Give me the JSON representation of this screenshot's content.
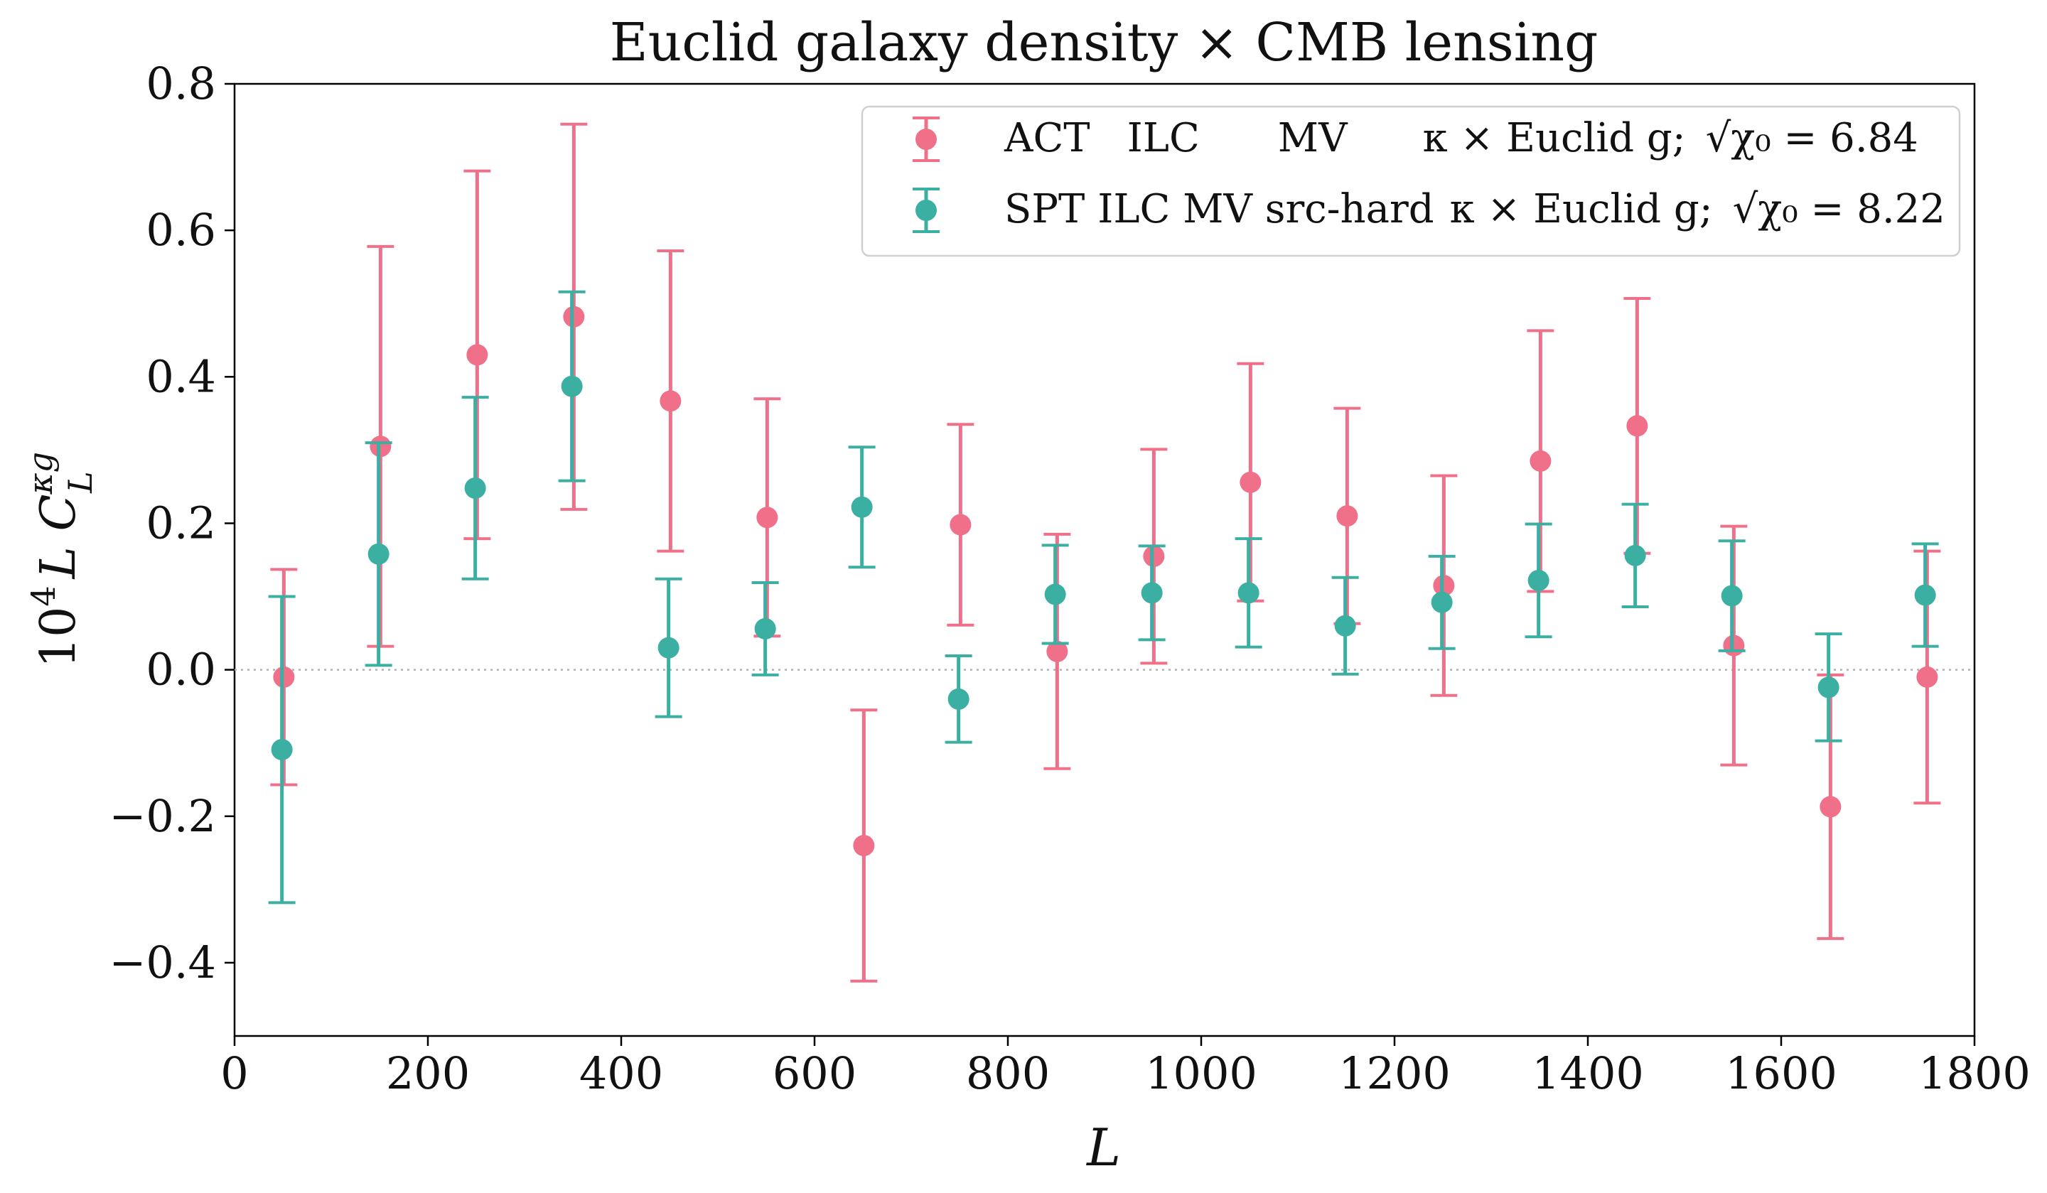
{
  "chart_data": {
    "type": "scatter",
    "title": "Euclid galaxy density × CMB lensing",
    "xlabel": "L",
    "ylabel": {
      "prefix": "10",
      "exp": "4",
      "mid": "L C",
      "sup": "κg",
      "sub": "L"
    },
    "xlim": [
      0,
      1800
    ],
    "ylim": [
      -0.5,
      0.8
    ],
    "xticks": [
      0,
      200,
      400,
      600,
      800,
      1000,
      1200,
      1400,
      1600,
      1800
    ],
    "yticks": [
      -0.4,
      -0.2,
      0.0,
      0.2,
      0.4,
      0.6,
      0.8
    ],
    "xtick_labels": [
      "0",
      "200",
      "400",
      "600",
      "800",
      "1000",
      "1200",
      "1400",
      "1600",
      "1800"
    ],
    "ytick_labels": [
      "−0.4",
      "−0.2",
      "0.0",
      "0.2",
      "0.4",
      "0.6",
      "0.8"
    ],
    "reference_line": {
      "y": 0.0,
      "style": "dotted",
      "color": "#b0b0b0"
    },
    "grid": false,
    "legend_position": "top-right",
    "series": [
      {
        "name": "ACT ILC MV κ × Euclid g",
        "legend_parts": [
          "ACT",
          "ILC",
          "MV",
          "κ × Euclid g;"
        ],
        "stat_label": "√χ₀ = 6.84",
        "color": "#f07089",
        "x": [
          51,
          151,
          251,
          351,
          451,
          551,
          651,
          751,
          851,
          951,
          1051,
          1151,
          1251,
          1351,
          1451,
          1551,
          1651,
          1751
        ],
        "y": [
          -0.01,
          0.305,
          0.43,
          0.482,
          0.367,
          0.208,
          -0.24,
          0.198,
          0.025,
          0.155,
          0.256,
          0.21,
          0.115,
          0.285,
          0.333,
          0.033,
          -0.187,
          -0.01
        ],
        "err": [
          0.147,
          0.273,
          0.251,
          0.263,
          0.205,
          0.162,
          0.185,
          0.137,
          0.16,
          0.146,
          0.162,
          0.147,
          0.15,
          0.178,
          0.174,
          0.163,
          0.18,
          0.172
        ]
      },
      {
        "name": "SPT ILC MV src-hard κ × Euclid g",
        "legend_parts": [
          "SPT ILC MV src-hard",
          "κ × Euclid g;"
        ],
        "stat_label": "√χ₀ = 8.22",
        "color": "#3bb0a2",
        "x": [
          49,
          149,
          249,
          349,
          449,
          549,
          649,
          749,
          849,
          949,
          1049,
          1149,
          1249,
          1349,
          1449,
          1549,
          1649,
          1749
        ],
        "y": [
          -0.109,
          0.158,
          0.248,
          0.387,
          0.03,
          0.056,
          0.222,
          -0.04,
          0.103,
          0.105,
          0.105,
          0.06,
          0.092,
          0.122,
          0.156,
          0.101,
          -0.024,
          0.102
        ],
        "err": [
          0.209,
          0.152,
          0.124,
          0.129,
          0.094,
          0.063,
          0.082,
          0.059,
          0.067,
          0.064,
          0.074,
          0.066,
          0.063,
          0.077,
          0.07,
          0.075,
          0.073,
          0.07
        ]
      }
    ]
  }
}
